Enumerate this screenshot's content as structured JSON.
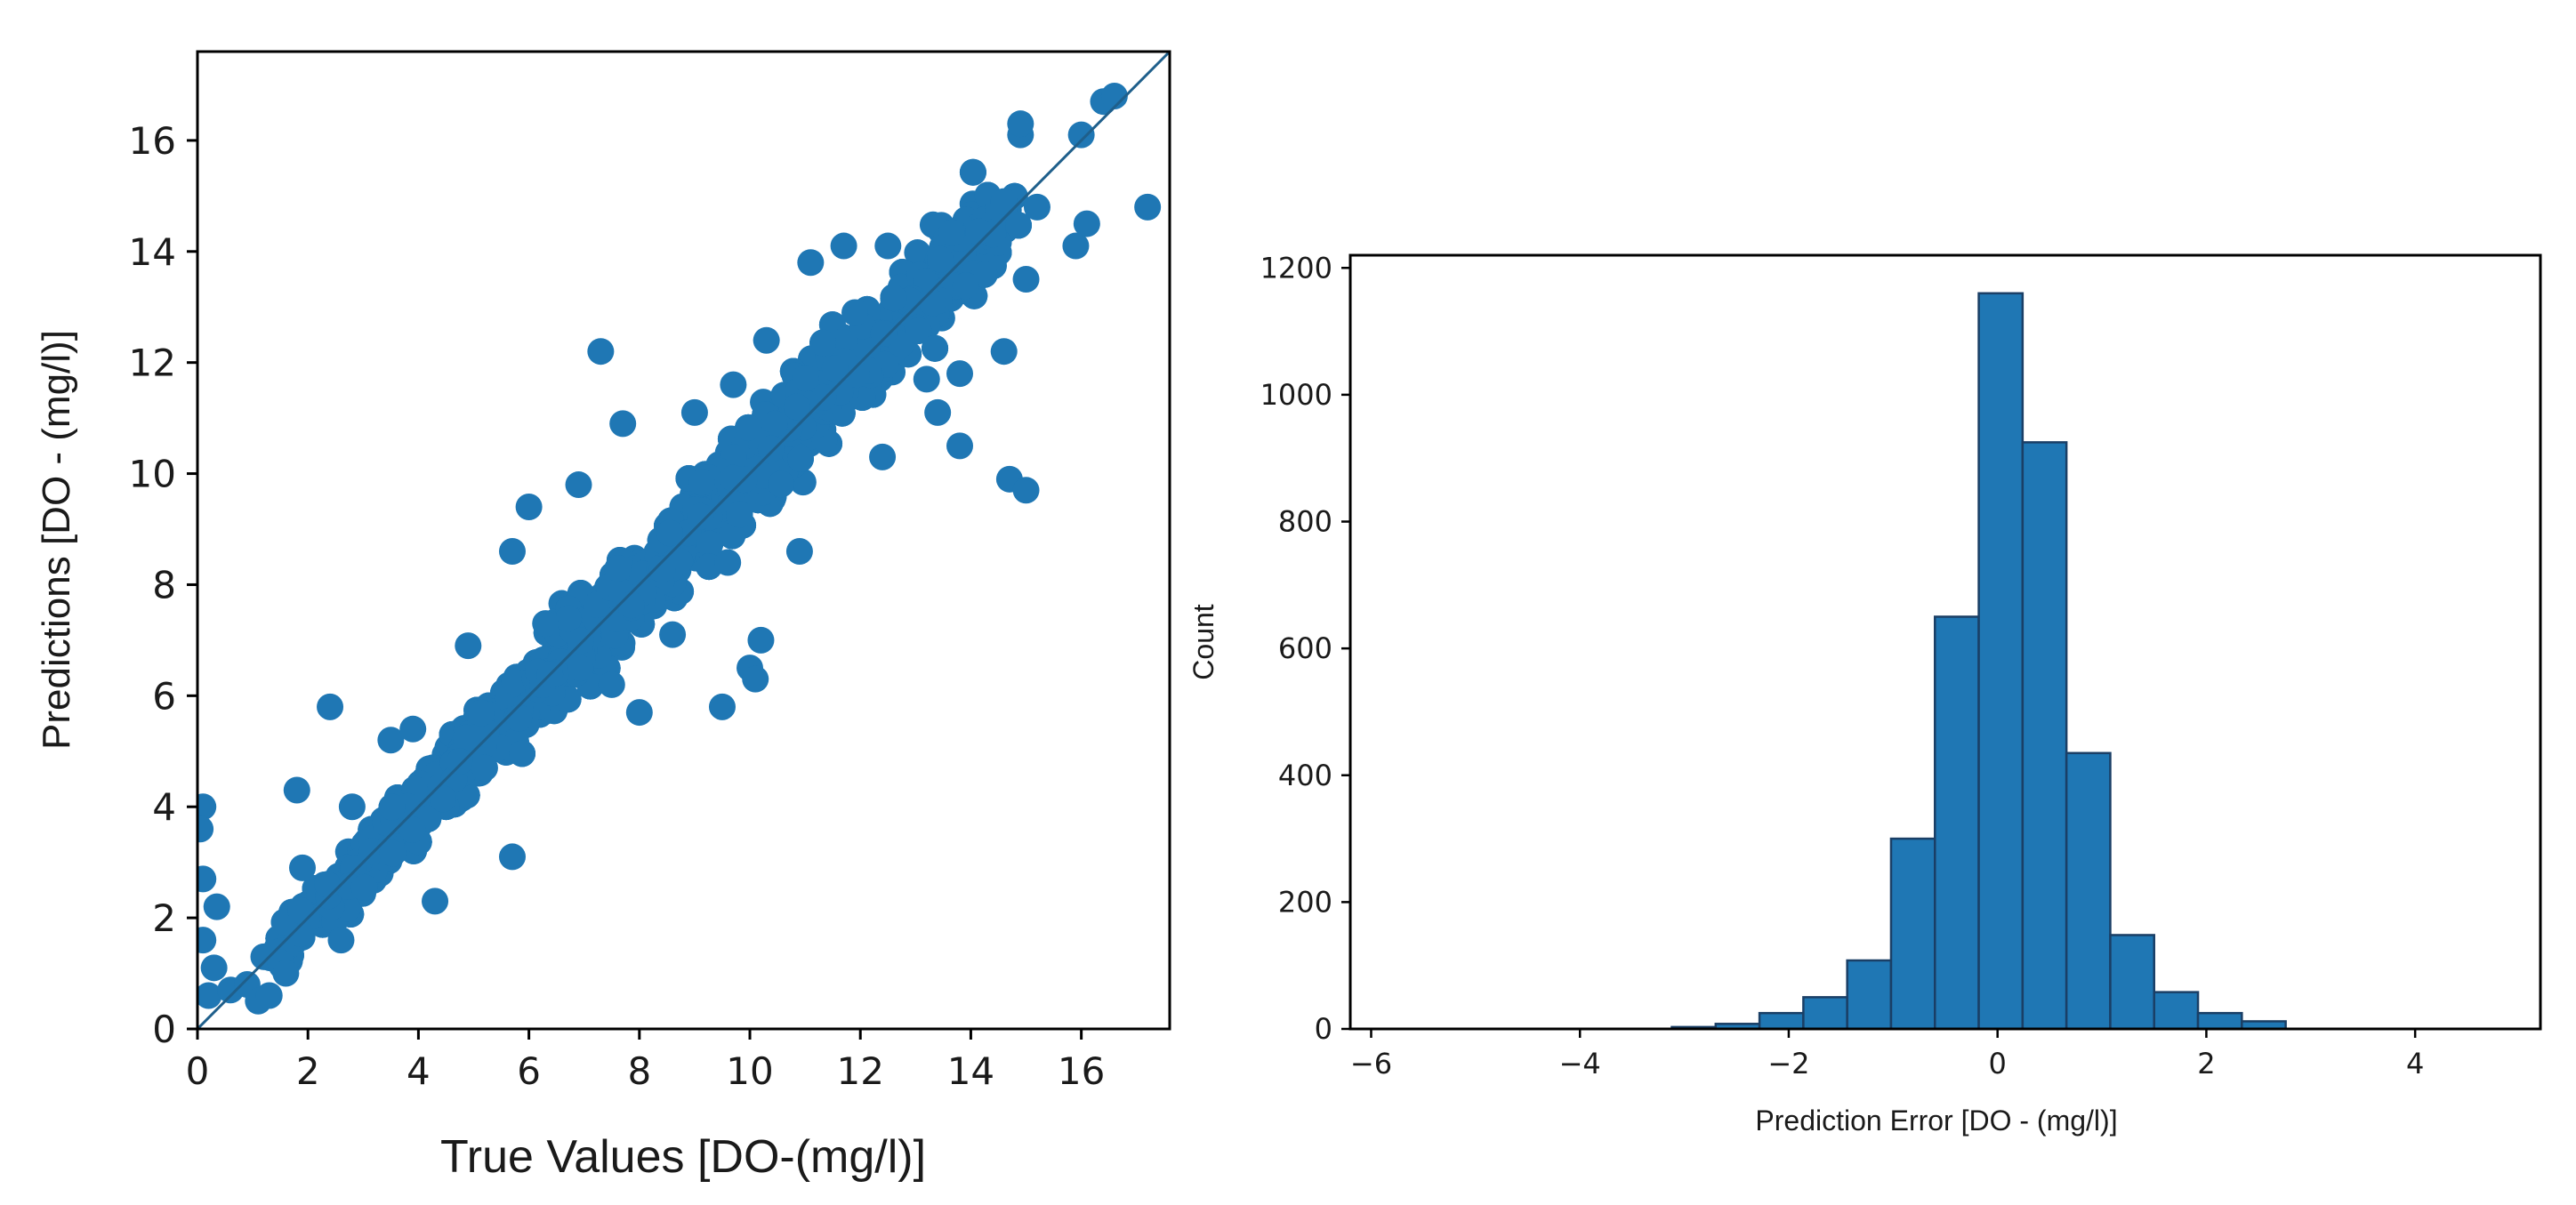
{
  "chart_data": [
    {
      "type": "scatter",
      "title": "",
      "xlabel": "True Values [DO-(mg/l)]",
      "ylabel": "Predictions [DO - (mg/l)]",
      "xlim": [
        0,
        17.6
      ],
      "ylim": [
        0,
        17.6
      ],
      "xticks": [
        0,
        2,
        4,
        6,
        8,
        10,
        12,
        14,
        16
      ],
      "yticks": [
        0,
        2,
        4,
        6,
        8,
        10,
        12,
        14,
        16
      ],
      "reference_line": {
        "from": [
          0,
          0
        ],
        "to": [
          17.6,
          17.6
        ]
      },
      "marker_color": "#1f77b4",
      "points": [
        [
          0.1,
          4.0
        ],
        [
          0.05,
          3.6
        ],
        [
          0.1,
          2.7
        ],
        [
          0.1,
          1.6
        ],
        [
          0.3,
          1.1
        ],
        [
          0.2,
          0.6
        ],
        [
          0.35,
          2.2
        ],
        [
          0.6,
          0.7
        ],
        [
          0.9,
          0.8
        ],
        [
          1.1,
          0.5
        ],
        [
          1.3,
          0.6
        ],
        [
          1.2,
          1.3
        ],
        [
          1.5,
          1.2
        ],
        [
          1.6,
          1.0
        ],
        [
          1.8,
          4.3
        ],
        [
          1.9,
          2.9
        ],
        [
          2.4,
          5.8
        ],
        [
          2.8,
          4.0
        ],
        [
          2.6,
          1.6
        ],
        [
          3.5,
          5.2
        ],
        [
          3.9,
          5.4
        ],
        [
          4.3,
          2.3
        ],
        [
          4.9,
          6.9
        ],
        [
          5.2,
          4.7
        ],
        [
          5.7,
          3.1
        ],
        [
          5.7,
          8.6
        ],
        [
          6.0,
          9.4
        ],
        [
          6.3,
          7.3
        ],
        [
          6.9,
          9.8
        ],
        [
          7.3,
          12.2
        ],
        [
          7.7,
          10.9
        ],
        [
          7.5,
          6.2
        ],
        [
          8.0,
          5.7
        ],
        [
          8.6,
          7.1
        ],
        [
          9.0,
          11.1
        ],
        [
          9.6,
          8.4
        ],
        [
          9.5,
          5.8
        ],
        [
          9.7,
          11.6
        ],
        [
          10.0,
          6.5
        ],
        [
          10.2,
          7.0
        ],
        [
          10.3,
          12.4
        ],
        [
          10.1,
          6.3
        ],
        [
          10.9,
          8.6
        ],
        [
          11.1,
          13.8
        ],
        [
          11.7,
          14.1
        ],
        [
          11.9,
          12.9
        ],
        [
          12.4,
          10.3
        ],
        [
          12.5,
          14.1
        ],
        [
          13.2,
          11.7
        ],
        [
          13.4,
          11.1
        ],
        [
          13.8,
          11.8
        ],
        [
          13.8,
          10.5
        ],
        [
          14.6,
          12.2
        ],
        [
          14.9,
          16.1
        ],
        [
          14.9,
          16.3
        ],
        [
          14.7,
          9.9
        ],
        [
          15.0,
          9.7
        ],
        [
          15.0,
          13.5
        ],
        [
          16.0,
          16.1
        ],
        [
          15.9,
          14.1
        ],
        [
          16.1,
          14.5
        ],
        [
          16.4,
          16.7
        ],
        [
          16.6,
          16.8
        ],
        [
          17.2,
          14.8
        ],
        [
          15.2,
          14.8
        ],
        [
          14.6,
          14.9
        ]
      ]
    },
    {
      "type": "bar",
      "title": "",
      "xlabel": "Prediction Error [DO - (mg/l)]",
      "ylabel": "Count",
      "xlim": [
        -6.2,
        5.2
      ],
      "ylim": [
        0,
        1220
      ],
      "xticks": [
        -6,
        -4,
        -2,
        0,
        2,
        4
      ],
      "yticks": [
        0,
        200,
        400,
        600,
        800,
        1000,
        1200
      ],
      "tick_labels_x": [
        "−6",
        "−4",
        "−2",
        "0",
        "2",
        "4"
      ],
      "bar_color": "#1f77b4",
      "bin_edges": [
        -3.12,
        -2.7,
        -2.28,
        -1.86,
        -1.44,
        -1.02,
        -0.6,
        -0.18,
        0.24,
        0.66,
        1.08,
        1.5,
        1.92,
        2.34,
        2.76
      ],
      "values": [
        3,
        8,
        25,
        50,
        108,
        300,
        650,
        1160,
        925,
        435,
        148,
        58,
        25,
        12
      ]
    }
  ]
}
